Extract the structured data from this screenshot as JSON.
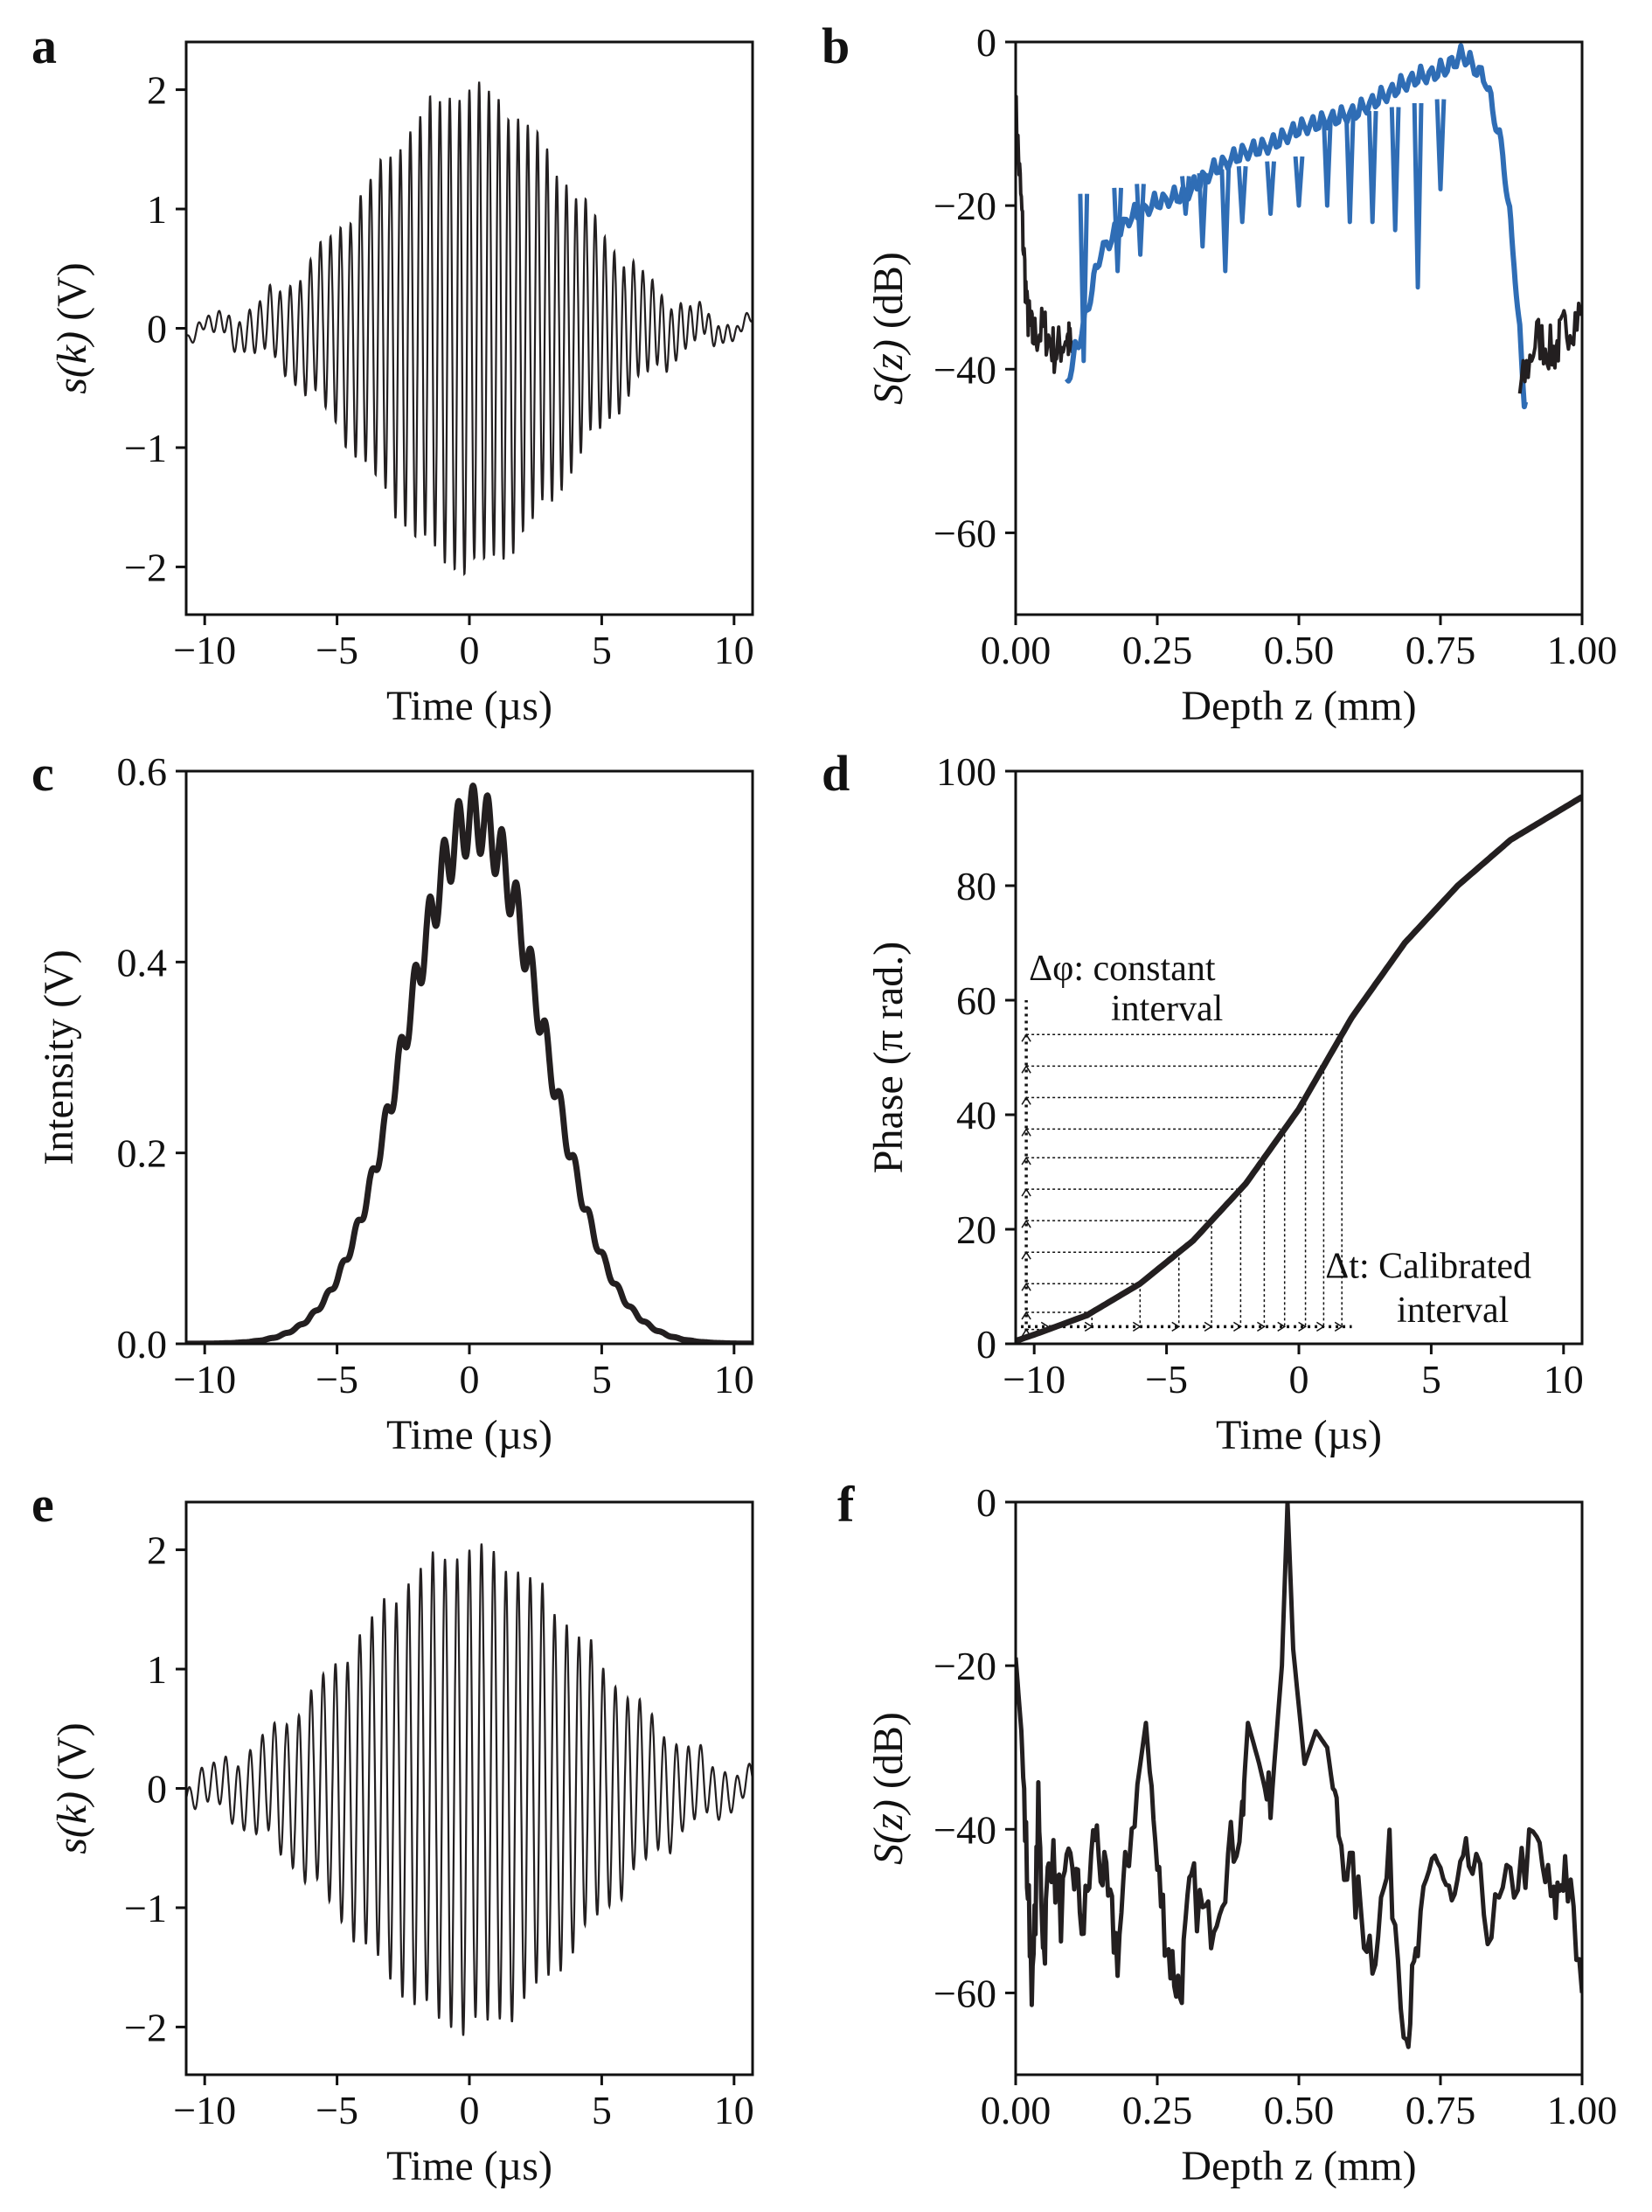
{
  "chart_data": [
    {
      "panel": "a",
      "type": "line",
      "xlabel": "Time (µs)",
      "ylabel_main": "s(k)",
      "ylabel_unit": "(V)",
      "xlim": [
        -10.7,
        10.7
      ],
      "ylim": [
        -2.4,
        2.4
      ],
      "xticks": [
        -10,
        -5,
        0,
        5,
        10
      ],
      "yticks": [
        2,
        1,
        0,
        -1,
        -2
      ],
      "line_color": "#231f20",
      "signal": {
        "amplitude": 2.0,
        "envelope_width_us": 5.3,
        "fringe_period_us": 0.37,
        "chirp": 0.04
      }
    },
    {
      "panel": "b",
      "type": "line",
      "xlabel": "Depth z (mm)",
      "ylabel_main": "S(z)",
      "ylabel_unit": "(dB)",
      "xlim": [
        0.0,
        1.0
      ],
      "ylim": [
        -70,
        0
      ],
      "xticks": [
        0.0,
        0.25,
        0.5,
        0.75,
        1.0
      ],
      "xtick_labels": [
        "0.00",
        "0.25",
        "0.50",
        "0.75",
        "1.00"
      ],
      "yticks": [
        0,
        -20,
        -40,
        -60
      ],
      "line_color": "#2f6db5",
      "noise_color": "#231f20",
      "segments": [
        {
          "color": "noise",
          "points": [
            [
              0.0,
              -8
            ],
            [
              0.01,
              -20
            ],
            [
              0.02,
              -33
            ],
            [
              0.03,
              -36
            ],
            [
              0.05,
              -35
            ],
            [
              0.07,
              -38
            ],
            [
              0.09,
              -36
            ],
            [
              0.1,
              -38
            ]
          ]
        },
        {
          "color": "signal",
          "points": [
            [
              0.09,
              -40
            ],
            [
              0.12,
              -33
            ],
            [
              0.15,
              -24
            ],
            [
              0.2,
              -20
            ],
            [
              0.25,
              -18
            ],
            [
              0.3,
              -17
            ],
            [
              0.35,
              -14
            ],
            [
              0.4,
              -12
            ],
            [
              0.45,
              -11
            ],
            [
              0.5,
              -9
            ],
            [
              0.55,
              -8
            ],
            [
              0.6,
              -7
            ],
            [
              0.65,
              -5
            ],
            [
              0.7,
              -3
            ],
            [
              0.75,
              -2
            ],
            [
              0.79,
              0
            ],
            [
              0.83,
              -3
            ],
            [
              0.86,
              -12
            ],
            [
              0.88,
              -25
            ],
            [
              0.9,
              -44
            ]
          ]
        },
        {
          "color": "noise",
          "points": [
            [
              0.89,
              -43
            ],
            [
              0.92,
              -36
            ],
            [
              0.95,
              -38
            ],
            [
              0.97,
              -35
            ],
            [
              1.0,
              -33
            ]
          ]
        }
      ],
      "dips": [
        [
          0.71,
          -30
        ],
        [
          0.67,
          -23
        ],
        [
          0.63,
          -22
        ],
        [
          0.59,
          -22
        ],
        [
          0.55,
          -20
        ],
        [
          0.5,
          -20
        ],
        [
          0.45,
          -21
        ],
        [
          0.4,
          -22
        ],
        [
          0.37,
          -28
        ],
        [
          0.33,
          -25
        ],
        [
          0.3,
          -21
        ],
        [
          0.22,
          -26
        ],
        [
          0.18,
          -28
        ],
        [
          0.12,
          -39
        ],
        [
          0.75,
          -18
        ]
      ]
    },
    {
      "panel": "c",
      "type": "line",
      "xlabel": "Time (µs)",
      "ylabel_main": "Intensity (V)",
      "xlim": [
        -10.7,
        10.7
      ],
      "ylim": [
        0.0,
        0.6
      ],
      "xticks": [
        -10,
        -5,
        0,
        5,
        10
      ],
      "yticks": [
        0.0,
        0.2,
        0.4,
        0.6
      ],
      "ytick_labels": [
        "0.0",
        "0.2",
        "0.4",
        "0.6"
      ],
      "line_color": "#231f20",
      "signal": {
        "peak": 0.55,
        "center_us": 0.2,
        "width_us": 3.6,
        "ripple": 0.035,
        "ripple_period_us": 0.55
      }
    },
    {
      "panel": "d",
      "type": "line",
      "xlabel": "Time (µs)",
      "ylabel_main": "Phase (π rad.)",
      "xlim": [
        -10.7,
        10.7
      ],
      "ylim": [
        0,
        100
      ],
      "xticks": [
        -10,
        -5,
        0,
        5,
        10
      ],
      "yticks": [
        0,
        20,
        40,
        60,
        80,
        100
      ],
      "line_color": "#231f20",
      "curve": [
        [
          -10.7,
          0.5
        ],
        [
          -10,
          1.6
        ],
        [
          -8,
          5
        ],
        [
          -6,
          10.5
        ],
        [
          -4,
          18
        ],
        [
          -2,
          28
        ],
        [
          0,
          41
        ],
        [
          1,
          49
        ],
        [
          2,
          57
        ],
        [
          4,
          70
        ],
        [
          6,
          80
        ],
        [
          8,
          88
        ],
        [
          10.7,
          95.5
        ]
      ],
      "grid_levels": [
        2.5,
        5.5,
        10.5,
        16,
        21.5,
        27,
        32.5,
        37.5,
        43,
        48.5,
        54
      ],
      "annotations": {
        "dphi_line1": "Δφ: constant",
        "dphi_line2": "interval",
        "dt_line1": "Δt: Calibrated",
        "dt_line2": "interval"
      }
    },
    {
      "panel": "e",
      "type": "line",
      "xlabel": "Time (µs)",
      "ylabel_main": "s(k)",
      "ylabel_unit": "(V)",
      "xlim": [
        -10.7,
        10.7
      ],
      "ylim": [
        -2.4,
        2.4
      ],
      "xticks": [
        -10,
        -5,
        0,
        5,
        10
      ],
      "yticks": [
        2,
        1,
        0,
        -1,
        -2
      ],
      "line_color": "#231f20",
      "signal": {
        "amplitude": 2.0,
        "envelope_width_us": 6.2,
        "fringe_period_us": 0.46,
        "chirp": 0.0
      }
    },
    {
      "panel": "f",
      "type": "line",
      "xlabel": "Depth z (mm)",
      "ylabel_main": "S(z)",
      "ylabel_unit": "(dB)",
      "xlim": [
        0.0,
        1.0
      ],
      "ylim": [
        -70,
        0
      ],
      "xticks": [
        0.0,
        0.25,
        0.5,
        0.75,
        1.0
      ],
      "xtick_labels": [
        "0.00",
        "0.25",
        "0.50",
        "0.75",
        "1.00"
      ],
      "yticks": [
        0,
        -20,
        -40,
        -60
      ],
      "line_color": "#231f20",
      "points": [
        [
          0.0,
          -19
        ],
        [
          0.01,
          -28
        ],
        [
          0.02,
          -45
        ],
        [
          0.03,
          -60
        ],
        [
          0.04,
          -38
        ],
        [
          0.05,
          -55
        ],
        [
          0.06,
          -42
        ],
        [
          0.08,
          -50
        ],
        [
          0.1,
          -44
        ],
        [
          0.12,
          -52
        ],
        [
          0.14,
          -40
        ],
        [
          0.16,
          -48
        ],
        [
          0.18,
          -55
        ],
        [
          0.2,
          -42
        ],
        [
          0.23,
          -27
        ],
        [
          0.25,
          -45
        ],
        [
          0.27,
          -55
        ],
        [
          0.29,
          -60
        ],
        [
          0.31,
          -47
        ],
        [
          0.34,
          -52
        ],
        [
          0.37,
          -45
        ],
        [
          0.4,
          -38
        ],
        [
          0.41,
          -27
        ],
        [
          0.43,
          -32
        ],
        [
          0.45,
          -38
        ],
        [
          0.47,
          -20
        ],
        [
          0.48,
          0
        ],
        [
          0.49,
          -18
        ],
        [
          0.51,
          -32
        ],
        [
          0.53,
          -28
        ],
        [
          0.55,
          -30
        ],
        [
          0.57,
          -40
        ],
        [
          0.6,
          -48
        ],
        [
          0.63,
          -55
        ],
        [
          0.66,
          -44
        ],
        [
          0.69,
          -65
        ],
        [
          0.71,
          -55
        ],
        [
          0.74,
          -42
        ],
        [
          0.77,
          -50
        ],
        [
          0.8,
          -44
        ],
        [
          0.84,
          -52
        ],
        [
          0.88,
          -46
        ],
        [
          0.92,
          -42
        ],
        [
          0.95,
          -50
        ],
        [
          0.97,
          -44
        ],
        [
          1.0,
          -60
        ]
      ]
    }
  ],
  "panel_letters": [
    "a",
    "b",
    "c",
    "d",
    "e",
    "f"
  ]
}
